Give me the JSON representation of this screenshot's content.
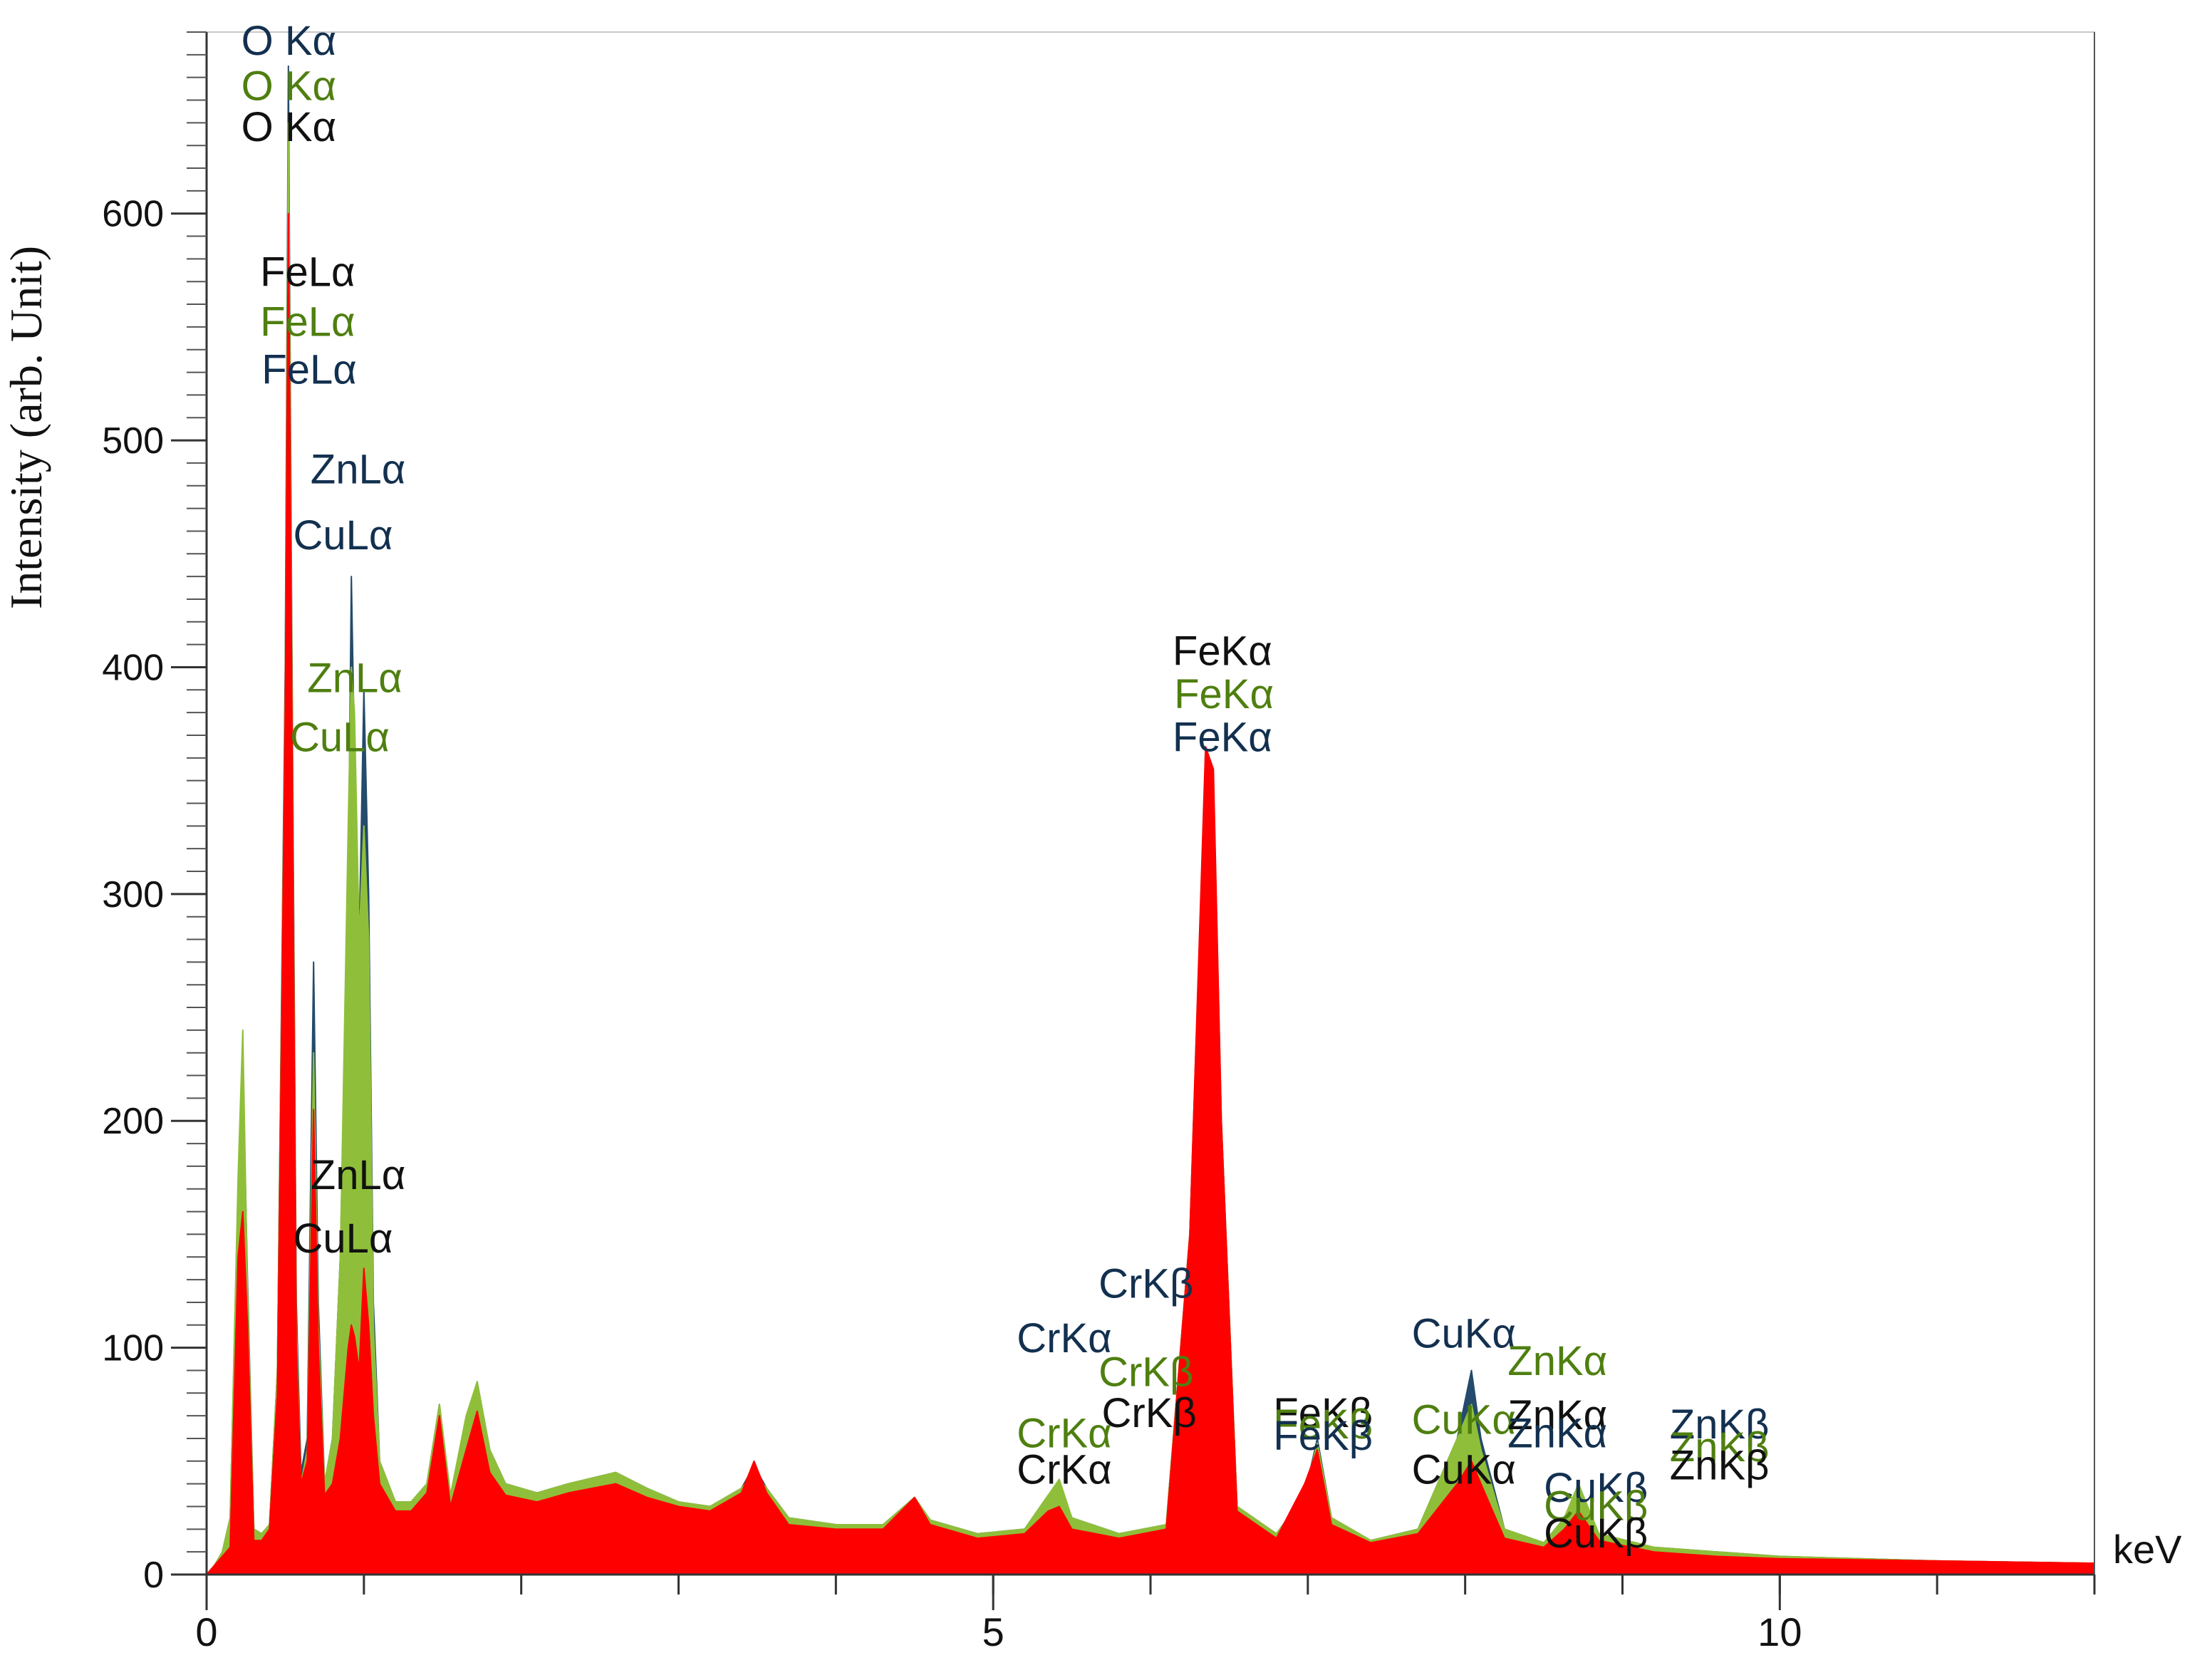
{
  "chart_data": {
    "type": "area",
    "title": "",
    "xlabel": "",
    "ylabel": "Intensity (arb. Unit)",
    "x_unit": "keV",
    "xlim": [
      0,
      12
    ],
    "ylim": [
      0,
      680
    ],
    "xticks": [
      0,
      5,
      10
    ],
    "yticks": [
      0,
      100,
      200,
      300,
      400,
      500,
      600
    ],
    "grid": false,
    "legend": "none",
    "colors": {
      "black": "#111111",
      "green": "#4f7f10",
      "navy": "#13304f",
      "red": "#ff0000",
      "green_fill": "#8fbf3a",
      "navy_fill": "#244b6b"
    },
    "series": [
      {
        "color": "#244b6b",
        "points": [
          [
            0.0,
            0
          ],
          [
            0.05,
            4
          ],
          [
            0.1,
            10
          ],
          [
            0.15,
            25
          ],
          [
            0.2,
            170
          ],
          [
            0.23,
            225
          ],
          [
            0.26,
            130
          ],
          [
            0.3,
            20
          ],
          [
            0.35,
            18
          ],
          [
            0.4,
            22
          ],
          [
            0.45,
            90
          ],
          [
            0.5,
            400
          ],
          [
            0.52,
            665
          ],
          [
            0.54,
            430
          ],
          [
            0.57,
            120
          ],
          [
            0.6,
            45
          ],
          [
            0.64,
            60
          ],
          [
            0.68,
            270
          ],
          [
            0.71,
            120
          ],
          [
            0.75,
            40
          ],
          [
            0.8,
            60
          ],
          [
            0.85,
            140
          ],
          [
            0.9,
            300
          ],
          [
            0.92,
            440
          ],
          [
            0.94,
            360
          ],
          [
            0.97,
            280
          ],
          [
            1.0,
            390
          ],
          [
            1.03,
            300
          ],
          [
            1.06,
            120
          ],
          [
            1.1,
            50
          ],
          [
            1.2,
            32
          ],
          [
            1.3,
            32
          ],
          [
            1.4,
            40
          ],
          [
            1.48,
            75
          ],
          [
            1.55,
            35
          ],
          [
            1.65,
            60
          ],
          [
            1.72,
            85
          ],
          [
            1.8,
            55
          ],
          [
            1.9,
            40
          ],
          [
            2.1,
            36
          ],
          [
            2.3,
            40
          ],
          [
            2.6,
            45
          ],
          [
            2.8,
            38
          ],
          [
            3.0,
            32
          ],
          [
            3.2,
            30
          ],
          [
            3.4,
            38
          ],
          [
            3.48,
            48
          ],
          [
            3.56,
            38
          ],
          [
            3.7,
            25
          ],
          [
            4.0,
            22
          ],
          [
            4.3,
            22
          ],
          [
            4.5,
            34
          ],
          [
            4.6,
            24
          ],
          [
            4.9,
            18
          ],
          [
            5.2,
            20
          ],
          [
            5.35,
            35
          ],
          [
            5.42,
            40
          ],
          [
            5.5,
            25
          ],
          [
            5.8,
            18
          ],
          [
            6.1,
            22
          ],
          [
            6.25,
            150
          ],
          [
            6.35,
            360
          ],
          [
            6.4,
            350
          ],
          [
            6.45,
            200
          ],
          [
            6.55,
            30
          ],
          [
            6.8,
            18
          ],
          [
            6.98,
            35
          ],
          [
            7.06,
            60
          ],
          [
            7.15,
            25
          ],
          [
            7.4,
            15
          ],
          [
            7.7,
            20
          ],
          [
            7.95,
            60
          ],
          [
            8.04,
            90
          ],
          [
            8.1,
            60
          ],
          [
            8.25,
            20
          ],
          [
            8.5,
            14
          ],
          [
            8.63,
            22
          ],
          [
            8.72,
            35
          ],
          [
            8.85,
            18
          ],
          [
            9.2,
            12
          ],
          [
            9.6,
            10
          ],
          [
            10.0,
            8
          ],
          [
            11.0,
            6
          ],
          [
            12.0,
            5
          ]
        ]
      },
      {
        "color": "#8fbf3a",
        "points": [
          [
            0.0,
            0
          ],
          [
            0.05,
            4
          ],
          [
            0.1,
            10
          ],
          [
            0.15,
            25
          ],
          [
            0.2,
            175
          ],
          [
            0.23,
            240
          ],
          [
            0.26,
            125
          ],
          [
            0.3,
            20
          ],
          [
            0.35,
            18
          ],
          [
            0.4,
            22
          ],
          [
            0.45,
            90
          ],
          [
            0.5,
            390
          ],
          [
            0.52,
            640
          ],
          [
            0.54,
            420
          ],
          [
            0.57,
            110
          ],
          [
            0.6,
            40
          ],
          [
            0.64,
            55
          ],
          [
            0.68,
            230
          ],
          [
            0.71,
            110
          ],
          [
            0.75,
            40
          ],
          [
            0.8,
            60
          ],
          [
            0.85,
            140
          ],
          [
            0.9,
            330
          ],
          [
            0.92,
            400
          ],
          [
            0.94,
            380
          ],
          [
            0.97,
            280
          ],
          [
            1.0,
            330
          ],
          [
            1.03,
            280
          ],
          [
            1.06,
            110
          ],
          [
            1.1,
            50
          ],
          [
            1.2,
            32
          ],
          [
            1.3,
            32
          ],
          [
            1.4,
            40
          ],
          [
            1.48,
            75
          ],
          [
            1.55,
            35
          ],
          [
            1.65,
            70
          ],
          [
            1.72,
            85
          ],
          [
            1.8,
            55
          ],
          [
            1.9,
            40
          ],
          [
            2.1,
            36
          ],
          [
            2.3,
            40
          ],
          [
            2.6,
            45
          ],
          [
            2.8,
            38
          ],
          [
            3.0,
            32
          ],
          [
            3.2,
            30
          ],
          [
            3.4,
            38
          ],
          [
            3.48,
            45
          ],
          [
            3.56,
            38
          ],
          [
            3.7,
            25
          ],
          [
            4.0,
            22
          ],
          [
            4.3,
            22
          ],
          [
            4.5,
            34
          ],
          [
            4.6,
            24
          ],
          [
            4.9,
            18
          ],
          [
            5.2,
            20
          ],
          [
            5.35,
            35
          ],
          [
            5.42,
            42
          ],
          [
            5.5,
            25
          ],
          [
            5.8,
            18
          ],
          [
            6.1,
            22
          ],
          [
            6.25,
            150
          ],
          [
            6.35,
            355
          ],
          [
            6.4,
            345
          ],
          [
            6.45,
            200
          ],
          [
            6.55,
            30
          ],
          [
            6.8,
            18
          ],
          [
            6.98,
            35
          ],
          [
            7.06,
            58
          ],
          [
            7.15,
            25
          ],
          [
            7.4,
            15
          ],
          [
            7.7,
            20
          ],
          [
            7.95,
            60
          ],
          [
            8.04,
            75
          ],
          [
            8.1,
            55
          ],
          [
            8.25,
            20
          ],
          [
            8.5,
            14
          ],
          [
            8.63,
            25
          ],
          [
            8.72,
            40
          ],
          [
            8.85,
            18
          ],
          [
            9.2,
            12
          ],
          [
            9.6,
            10
          ],
          [
            10.0,
            8
          ],
          [
            11.0,
            6
          ],
          [
            12.0,
            5
          ]
        ]
      },
      {
        "color": "#ff0000",
        "points": [
          [
            0.0,
            0
          ],
          [
            0.05,
            4
          ],
          [
            0.1,
            8
          ],
          [
            0.15,
            12
          ],
          [
            0.2,
            140
          ],
          [
            0.23,
            160
          ],
          [
            0.26,
            110
          ],
          [
            0.3,
            15
          ],
          [
            0.35,
            15
          ],
          [
            0.4,
            20
          ],
          [
            0.45,
            80
          ],
          [
            0.5,
            380
          ],
          [
            0.52,
            600
          ],
          [
            0.54,
            400
          ],
          [
            0.57,
            100
          ],
          [
            0.6,
            40
          ],
          [
            0.64,
            50
          ],
          [
            0.68,
            205
          ],
          [
            0.71,
            100
          ],
          [
            0.75,
            35
          ],
          [
            0.8,
            40
          ],
          [
            0.85,
            60
          ],
          [
            0.9,
            100
          ],
          [
            0.92,
            110
          ],
          [
            0.94,
            105
          ],
          [
            0.97,
            90
          ],
          [
            1.0,
            135
          ],
          [
            1.03,
            110
          ],
          [
            1.06,
            70
          ],
          [
            1.1,
            40
          ],
          [
            1.2,
            28
          ],
          [
            1.3,
            28
          ],
          [
            1.4,
            36
          ],
          [
            1.48,
            70
          ],
          [
            1.55,
            30
          ],
          [
            1.65,
            55
          ],
          [
            1.72,
            72
          ],
          [
            1.8,
            45
          ],
          [
            1.9,
            35
          ],
          [
            2.1,
            32
          ],
          [
            2.3,
            36
          ],
          [
            2.6,
            40
          ],
          [
            2.8,
            34
          ],
          [
            3.0,
            30
          ],
          [
            3.2,
            28
          ],
          [
            3.4,
            36
          ],
          [
            3.48,
            50
          ],
          [
            3.56,
            36
          ],
          [
            3.7,
            22
          ],
          [
            4.0,
            20
          ],
          [
            4.3,
            20
          ],
          [
            4.5,
            34
          ],
          [
            4.6,
            22
          ],
          [
            4.9,
            16
          ],
          [
            5.2,
            18
          ],
          [
            5.35,
            28
          ],
          [
            5.42,
            30
          ],
          [
            5.5,
            20
          ],
          [
            5.8,
            16
          ],
          [
            6.1,
            20
          ],
          [
            6.25,
            150
          ],
          [
            6.35,
            365
          ],
          [
            6.4,
            355
          ],
          [
            6.45,
            200
          ],
          [
            6.55,
            28
          ],
          [
            6.8,
            16
          ],
          [
            6.98,
            40
          ],
          [
            7.06,
            55
          ],
          [
            7.15,
            22
          ],
          [
            7.4,
            14
          ],
          [
            7.7,
            18
          ],
          [
            7.95,
            40
          ],
          [
            8.04,
            50
          ],
          [
            8.1,
            40
          ],
          [
            8.25,
            16
          ],
          [
            8.5,
            12
          ],
          [
            8.63,
            20
          ],
          [
            8.72,
            28
          ],
          [
            8.85,
            15
          ],
          [
            9.2,
            10
          ],
          [
            9.6,
            8
          ],
          [
            10.0,
            7
          ],
          [
            11.0,
            6
          ],
          [
            12.0,
            5
          ]
        ]
      }
    ],
    "annotations": [
      {
        "text": "O Kα",
        "x": 0.22,
        "y": 670,
        "color": "navy"
      },
      {
        "text": "O Kα",
        "x": 0.22,
        "y": 650,
        "color": "green"
      },
      {
        "text": "O Kα",
        "x": 0.22,
        "y": 632,
        "color": "black"
      },
      {
        "text": "FeLα",
        "x": 0.34,
        "y": 568,
        "color": "black"
      },
      {
        "text": "FeLα",
        "x": 0.34,
        "y": 546,
        "color": "green"
      },
      {
        "text": "FeLα",
        "x": 0.35,
        "y": 525,
        "color": "navy"
      },
      {
        "text": "ZnLα",
        "x": 0.66,
        "y": 481,
        "color": "navy"
      },
      {
        "text": "CuLα",
        "x": 0.55,
        "y": 452,
        "color": "navy"
      },
      {
        "text": "ZnLα",
        "x": 0.64,
        "y": 389,
        "color": "green"
      },
      {
        "text": "CuLα",
        "x": 0.53,
        "y": 363,
        "color": "green"
      },
      {
        "text": "ZnLα",
        "x": 0.66,
        "y": 170,
        "color": "black"
      },
      {
        "text": "CuLα",
        "x": 0.55,
        "y": 142,
        "color": "black"
      },
      {
        "text": "FeKα",
        "x": 6.14,
        "y": 401,
        "color": "black"
      },
      {
        "text": "FeKα",
        "x": 6.15,
        "y": 382,
        "color": "green"
      },
      {
        "text": "FeKα",
        "x": 6.14,
        "y": 363,
        "color": "navy"
      },
      {
        "text": "CrKβ",
        "x": 5.67,
        "y": 122,
        "color": "navy"
      },
      {
        "text": "CrKα",
        "x": 5.15,
        "y": 98,
        "color": "navy"
      },
      {
        "text": "CrKβ",
        "x": 5.67,
        "y": 83,
        "color": "green"
      },
      {
        "text": "CrKβ",
        "x": 5.69,
        "y": 65,
        "color": "black"
      },
      {
        "text": "CrKα",
        "x": 5.15,
        "y": 56,
        "color": "green"
      },
      {
        "text": "CrKα",
        "x": 5.15,
        "y": 40,
        "color": "black"
      },
      {
        "text": "FeKβ",
        "x": 6.78,
        "y": 65,
        "color": "black"
      },
      {
        "text": "FeKβ",
        "x": 6.78,
        "y": 60,
        "color": "green"
      },
      {
        "text": "FeKβ",
        "x": 6.78,
        "y": 55,
        "color": "navy"
      },
      {
        "text": "CuKα",
        "x": 7.66,
        "y": 100,
        "color": "navy"
      },
      {
        "text": "ZnKα",
        "x": 8.27,
        "y": 88,
        "color": "green"
      },
      {
        "text": "CuKα",
        "x": 7.66,
        "y": 62,
        "color": "green"
      },
      {
        "text": "ZnKα",
        "x": 8.27,
        "y": 64,
        "color": "black"
      },
      {
        "text": "ZnKα",
        "x": 8.27,
        "y": 56,
        "color": "navy"
      },
      {
        "text": "CuKα",
        "x": 7.66,
        "y": 40,
        "color": "black"
      },
      {
        "text": "CuKβ",
        "x": 8.5,
        "y": 32,
        "color": "navy"
      },
      {
        "text": "CuKβ",
        "x": 8.5,
        "y": 24,
        "color": "green"
      },
      {
        "text": "CuKβ",
        "x": 8.5,
        "y": 12,
        "color": "black"
      },
      {
        "text": "ZnKβ",
        "x": 9.3,
        "y": 60,
        "color": "navy"
      },
      {
        "text": "ZnKβ",
        "x": 9.3,
        "y": 50,
        "color": "green"
      },
      {
        "text": "ZnKβ",
        "x": 9.3,
        "y": 42,
        "color": "black"
      }
    ]
  }
}
